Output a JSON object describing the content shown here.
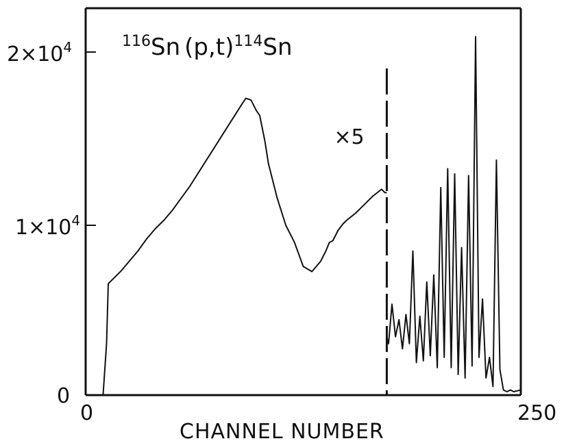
{
  "chart_data": {
    "type": "line",
    "title": {
      "target_mass": "116",
      "target_symbol": "Sn",
      "reaction": "(p,t)",
      "product_mass": "114",
      "product_symbol": "Sn"
    },
    "xlabel": "CHANNEL NUMBER",
    "ylabel": "",
    "xlim": [
      0,
      250
    ],
    "ylim": [
      0,
      22000
    ],
    "x_tick_labels": [
      {
        "value": 0,
        "label": "0"
      },
      {
        "value": 250,
        "label": "250"
      }
    ],
    "y_tick_labels": [
      {
        "value": 0,
        "label": "0"
      },
      {
        "value": 10000,
        "label": "1×10",
        "exponent": "4"
      },
      {
        "value": 20000,
        "label": "2×10",
        "exponent": "4"
      }
    ],
    "scale_change": {
      "x": 173,
      "label": "×5"
    },
    "grid": false,
    "series": [
      {
        "x": [
          0,
          10,
          12,
          13,
          14,
          15,
          20,
          25,
          30,
          35,
          40,
          45,
          50,
          55,
          60,
          65,
          70,
          75,
          80,
          85,
          90,
          92,
          95,
          98,
          100,
          103,
          105,
          110,
          115,
          120,
          125,
          130,
          135,
          138,
          140,
          142,
          145,
          148,
          150,
          155,
          160,
          165,
          170,
          172,
          173
        ],
        "y": [
          0,
          0,
          3000,
          6500,
          6600,
          6700,
          7200,
          7800,
          8400,
          9100,
          9700,
          10200,
          10800,
          11500,
          12200,
          13000,
          13800,
          14600,
          15400,
          16200,
          17000,
          17300,
          17200,
          16600,
          16300,
          14800,
          13500,
          11500,
          9900,
          8900,
          7500,
          7200,
          7800,
          8400,
          8900,
          9000,
          9600,
          10000,
          10200,
          10600,
          11100,
          11600,
          12000,
          11800,
          11800
        ]
      },
      {
        "x": [
          173,
          174,
          176,
          178,
          180,
          182,
          184,
          186,
          188,
          190,
          192,
          194,
          196,
          198,
          200,
          202,
          204,
          206,
          208,
          210,
          212,
          214,
          216,
          218,
          220,
          222,
          224,
          226,
          228,
          230,
          232,
          234,
          236,
          238,
          240,
          242,
          244,
          246,
          248,
          250
        ],
        "y": [
          3400,
          3000,
          5300,
          3400,
          4400,
          2700,
          4700,
          3000,
          8400,
          1900,
          4600,
          2000,
          6600,
          2300,
          7000,
          1600,
          12100,
          2200,
          13200,
          1600,
          12900,
          1200,
          8600,
          1000,
          12800,
          1700,
          20900,
          2200,
          5600,
          1000,
          2200,
          500,
          13700,
          1500,
          300,
          200,
          300,
          200,
          250,
          300
        ]
      }
    ]
  }
}
